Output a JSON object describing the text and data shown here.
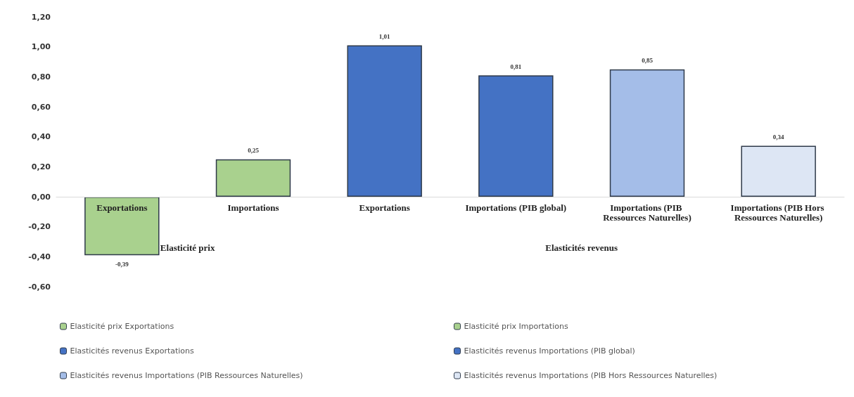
{
  "chart_data": {
    "type": "bar",
    "stacked": true,
    "categories": [
      "Exportations",
      "Importations",
      "Exportations",
      "Importations (PIB global)",
      "Importations (PIB Ressources Naturelles)",
      "Importations (PIB Hors Ressources Naturelles)"
    ],
    "series": [
      {
        "name": "Elasticité prix Exportations",
        "color": "#a9d18e",
        "values": [
          -0.39,
          null,
          null,
          null,
          null,
          null
        ],
        "value_labels": [
          "-0,39",
          null,
          null,
          null,
          null,
          null
        ]
      },
      {
        "name": "Elasticité prix Importations",
        "color": "#a9d18e",
        "values": [
          null,
          0.25,
          null,
          null,
          null,
          null
        ],
        "value_labels": [
          null,
          "0,25",
          null,
          null,
          null,
          null
        ]
      },
      {
        "name": "Elasticités revenus Exportations",
        "color": "#4472c4",
        "values": [
          null,
          null,
          1.01,
          null,
          null,
          null
        ],
        "value_labels": [
          null,
          null,
          "1,01",
          null,
          null,
          null
        ]
      },
      {
        "name": "Elasticités revenus Importations (PIB global)",
        "color": "#4472c4",
        "values": [
          null,
          null,
          null,
          0.81,
          null,
          null
        ],
        "value_labels": [
          null,
          null,
          null,
          "0,81",
          null,
          null
        ]
      },
      {
        "name": "Elasticités revenus Importations (PIB Ressources Naturelles)",
        "color": "#a4bde8",
        "values": [
          null,
          null,
          null,
          null,
          0.85,
          null
        ],
        "value_labels": [
          null,
          null,
          null,
          null,
          "0,85",
          null
        ]
      },
      {
        "name": "Elasticités revenus Importations (PIB Hors Ressources Naturelles)",
        "color": "#dde6f4",
        "values": [
          null,
          null,
          null,
          null,
          null,
          0.34
        ],
        "value_labels": [
          null,
          null,
          null,
          null,
          null,
          "0,34"
        ]
      }
    ],
    "annotations": [
      "Elasticité prix",
      "Elasticités revenus"
    ],
    "ylim": [
      -0.6,
      1.2
    ],
    "yticks": [
      {
        "value": -0.6,
        "label": "-0,60"
      },
      {
        "value": -0.4,
        "label": "-0,40"
      },
      {
        "value": -0.2,
        "label": "-0,20"
      },
      {
        "value": 0,
        "label": "0,00"
      },
      {
        "value": 0.2,
        "label": "0,20"
      },
      {
        "value": 0.4,
        "label": "0,40"
      },
      {
        "value": 0.6,
        "label": "0,60"
      },
      {
        "value": 0.8,
        "label": "0,80"
      },
      {
        "value": 1,
        "label": "1,00"
      },
      {
        "value": 1.2,
        "label": "1,20"
      }
    ],
    "legend": "bottom"
  }
}
